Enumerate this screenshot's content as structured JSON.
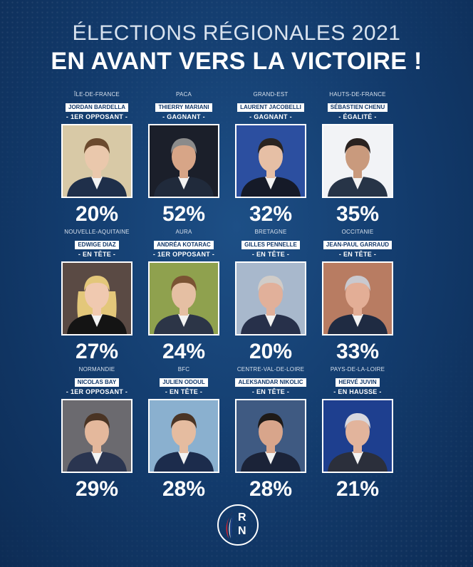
{
  "header": {
    "title": "ÉLECTIONS RÉGIONALES 2021",
    "subtitle": "EN AVANT VERS LA VICTOIRE !"
  },
  "candidates": [
    {
      "region": "ÎLE-DE-FRANCE",
      "name": "JORDAN BARDELLA",
      "status": "- 1ER OPPOSANT -",
      "percent": "20%",
      "bg": "#d8c9a6",
      "skin": "#eac8ac",
      "hair": "#6b4a2e",
      "suit": "#1f2f4a"
    },
    {
      "region": "PACA",
      "name": "THIERRY MARIANI",
      "status": "- GAGNANT -",
      "percent": "52%",
      "bg": "#1b1f2a",
      "skin": "#d7a587",
      "hair": "#8b8b8b",
      "suit": "#202a3b"
    },
    {
      "region": "GRAND-EST",
      "name": "LAURENT JACOBELLI",
      "status": "- GAGNANT -",
      "percent": "32%",
      "bg": "#2c4fa0",
      "skin": "#e6bfa5",
      "hair": "#2a2420",
      "suit": "#151a28"
    },
    {
      "region": "HAUTS-DE-FRANCE",
      "name": "SÉBASTIEN CHENU",
      "status": "- ÉGALITÉ -",
      "percent": "35%",
      "bg": "#f2f3f6",
      "skin": "#c99a7d",
      "hair": "#2a2220",
      "suit": "#273447"
    },
    {
      "region": "NOUVELLE-AQUITAINE",
      "name": "EDWIGE DIAZ",
      "status": "- EN TÊTE -",
      "percent": "27%",
      "bg": "#5a4a44",
      "skin": "#f0c9b0",
      "hair": "#e3c77a",
      "suit": "#141414"
    },
    {
      "region": "AURA",
      "name": "ANDRÉA KOTARAC",
      "status": "- 1ER OPPOSANT -",
      "percent": "24%",
      "bg": "#8fa14e",
      "skin": "#e5bfa3",
      "hair": "#7a5333",
      "suit": "#2c3547"
    },
    {
      "region": "BRETAGNE",
      "name": "GILLES PENNELLE",
      "status": "- EN TÊTE -",
      "percent": "20%",
      "bg": "#a8b8cc",
      "skin": "#e1b09a",
      "hair": "#d0ccc8",
      "suit": "#27304a"
    },
    {
      "region": "OCCITANIE",
      "name": "JEAN-PAUL GARRAUD",
      "status": "- EN TÊTE -",
      "percent": "33%",
      "bg": "#b87c62",
      "skin": "#e3ae96",
      "hair": "#c9c9cf",
      "suit": "#1f2b42"
    },
    {
      "region": "NORMANDIE",
      "name": "NICOLAS BAY",
      "status": "- 1ER OPPOSANT -",
      "percent": "29%",
      "bg": "#6b6a6f",
      "skin": "#e4b89c",
      "hair": "#4a3424",
      "suit": "#2a3550"
    },
    {
      "region": "BFC",
      "name": "JULIEN ODOUL",
      "status": "- EN TÊTE -",
      "percent": "28%",
      "bg": "#8ab0cf",
      "skin": "#e5bca0",
      "hair": "#4a3526",
      "suit": "#1c2c4c"
    },
    {
      "region": "CENTRE-VAL-DE-LOIRE",
      "name": "ALEKSANDAR NIKOLIC",
      "status": "- EN TÊTE -",
      "percent": "28%",
      "bg": "#3f5a82",
      "skin": "#d8a58b",
      "hair": "#1e1a18",
      "suit": "#1b2338"
    },
    {
      "region": "PAYS-DE-LA-LOIRE",
      "name": "HERVÉ JUVIN",
      "status": "- EN HAUSSE -",
      "percent": "21%",
      "bg": "#1e3f8f",
      "skin": "#e2b49c",
      "hair": "#d8d8de",
      "suit": "#2b2f3b"
    }
  ],
  "logo": {
    "letter_r": "R",
    "letter_n": "N"
  },
  "colors": {
    "background": "#123a6b",
    "accent_red": "#d5242f",
    "accent_blue": "#1c3e8f"
  }
}
